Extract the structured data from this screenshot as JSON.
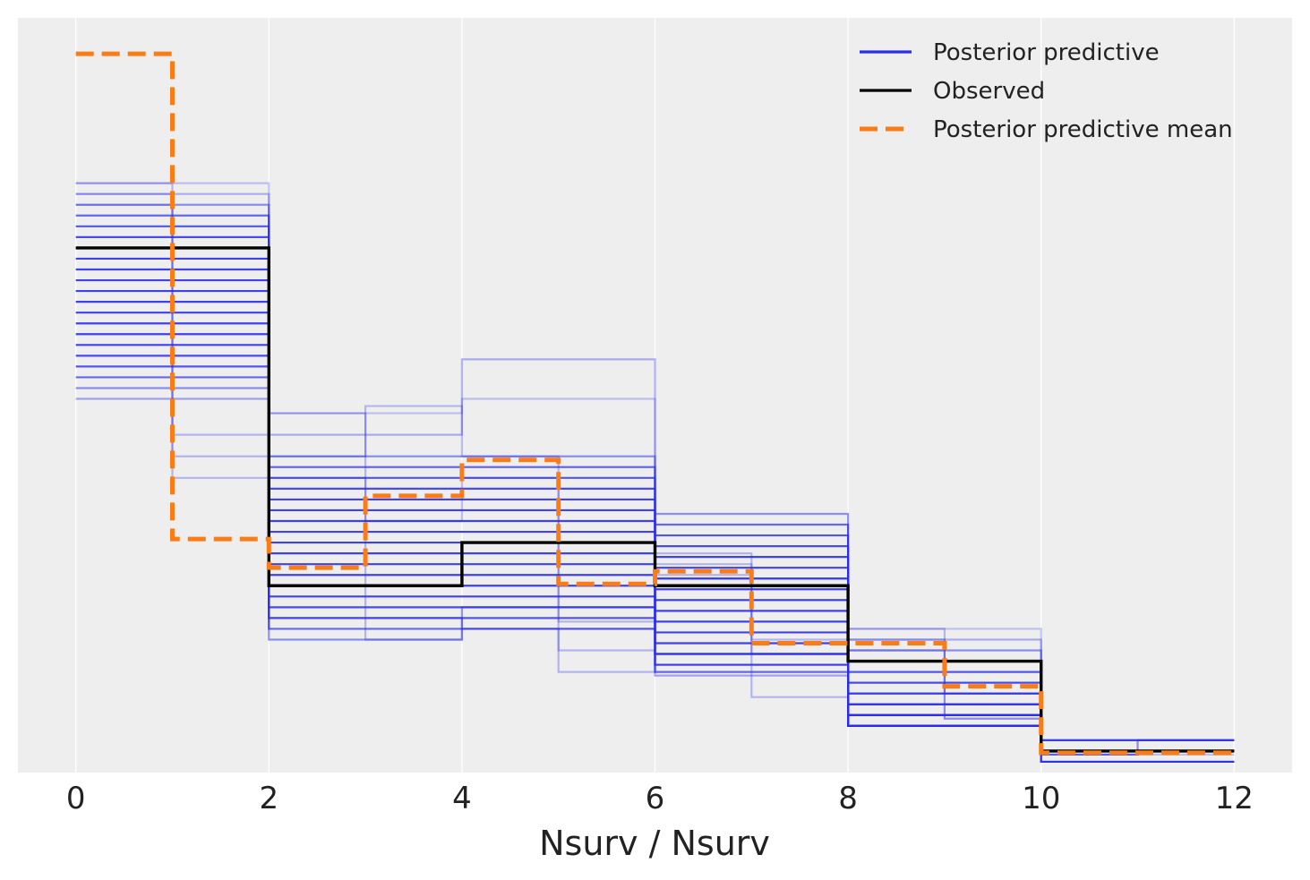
{
  "chart_data": {
    "type": "step",
    "xlabel": "Nsurv / Nsurv",
    "ylabel": "",
    "xlim": [
      -0.6,
      12.6
    ],
    "ylim": [
      0,
      0.42
    ],
    "x_ticks": [
      0,
      2,
      4,
      6,
      8,
      10,
      12
    ],
    "grid": true,
    "legend_position": "top-right",
    "legend": [
      {
        "label": "Posterior predictive",
        "color": "#2a2eec",
        "style": "solid"
      },
      {
        "label": "Observed",
        "color": "#000000",
        "style": "solid"
      },
      {
        "label": "Posterior predictive mean",
        "color": "#fa7c17",
        "style": "dashed"
      }
    ],
    "colors": {
      "background": "#eeeeee",
      "grid": "#ffffff",
      "posterior": "#2a2eec",
      "observed": "#000000",
      "mean": "#fa7c17"
    },
    "posterior_samples": [
      {
        "edges": [
          0,
          1,
          2,
          3,
          4,
          5,
          6,
          7,
          8,
          9,
          10,
          11,
          12
        ],
        "y": [
          0.328,
          0.328,
          0.2,
          0.2,
          0.208,
          0.208,
          0.096,
          0.096,
          0.08,
          0.08,
          0.01,
          0.01
        ],
        "alpha": 0.25
      },
      {
        "edges": [
          0,
          1,
          2,
          3,
          4,
          5,
          6,
          7,
          8,
          9,
          10,
          11,
          12
        ],
        "y": [
          0.322,
          0.322,
          0.188,
          0.188,
          0.23,
          0.23,
          0.108,
          0.108,
          0.074,
          0.074,
          0.012,
          0.012
        ],
        "alpha": 0.35
      },
      {
        "edges": [
          0,
          1,
          2,
          3,
          4,
          5,
          6,
          7,
          8,
          9,
          10,
          11,
          12
        ],
        "y": [
          0.316,
          0.316,
          0.176,
          0.176,
          0.176,
          0.176,
          0.144,
          0.144,
          0.068,
          0.068,
          0.018,
          0.018
        ],
        "alpha": 0.5
      },
      {
        "edges": [
          0,
          1,
          2,
          3,
          4,
          5,
          6,
          7,
          8,
          9,
          10,
          11,
          12
        ],
        "y": [
          0.31,
          0.31,
          0.17,
          0.17,
          0.17,
          0.17,
          0.138,
          0.138,
          0.062,
          0.062,
          0.006,
          0.006
        ],
        "alpha": 0.7
      },
      {
        "edges": [
          0,
          1,
          2,
          3,
          4,
          5,
          6,
          7,
          8,
          9,
          10,
          11,
          12
        ],
        "y": [
          0.304,
          0.304,
          0.164,
          0.164,
          0.164,
          0.164,
          0.132,
          0.132,
          0.056,
          0.056,
          0.012,
          0.012
        ],
        "alpha": 0.8
      },
      {
        "edges": [
          0,
          1,
          2,
          3,
          4,
          5,
          6,
          7,
          8,
          9,
          10,
          11,
          12
        ],
        "y": [
          0.298,
          0.298,
          0.158,
          0.158,
          0.158,
          0.158,
          0.126,
          0.126,
          0.05,
          0.05,
          0.012,
          0.012
        ],
        "alpha": 0.85
      },
      {
        "edges": [
          0,
          1,
          2,
          3,
          4,
          5,
          6,
          7,
          8,
          9,
          10,
          11,
          12
        ],
        "y": [
          0.292,
          0.292,
          0.152,
          0.152,
          0.152,
          0.152,
          0.12,
          0.12,
          0.044,
          0.044,
          0.012,
          0.012
        ],
        "alpha": 0.9
      },
      {
        "edges": [
          0,
          1,
          2,
          3,
          4,
          5,
          6,
          7,
          8,
          9,
          10,
          11,
          12
        ],
        "y": [
          0.286,
          0.286,
          0.146,
          0.146,
          0.146,
          0.146,
          0.114,
          0.114,
          0.038,
          0.038,
          0.012,
          0.012
        ],
        "alpha": 0.9
      },
      {
        "edges": [
          0,
          1,
          2,
          3,
          4,
          5,
          6,
          7,
          8,
          9,
          10,
          11,
          12
        ],
        "y": [
          0.28,
          0.28,
          0.14,
          0.14,
          0.14,
          0.14,
          0.108,
          0.108,
          0.032,
          0.032,
          0.012,
          0.012
        ],
        "alpha": 0.9
      },
      {
        "edges": [
          0,
          1,
          2,
          3,
          4,
          5,
          6,
          7,
          8,
          9,
          10,
          11,
          12
        ],
        "y": [
          0.274,
          0.274,
          0.134,
          0.134,
          0.134,
          0.134,
          0.102,
          0.102,
          0.026,
          0.026,
          0.012,
          0.012
        ],
        "alpha": 0.9
      },
      {
        "edges": [
          0,
          1,
          2,
          3,
          4,
          5,
          6,
          7,
          8,
          9,
          10,
          11,
          12
        ],
        "y": [
          0.268,
          0.268,
          0.128,
          0.128,
          0.128,
          0.128,
          0.096,
          0.096,
          0.026,
          0.026,
          0.012,
          0.012
        ],
        "alpha": 0.9
      },
      {
        "edges": [
          0,
          1,
          2,
          3,
          4,
          5,
          6,
          7,
          8,
          9,
          10,
          11,
          12
        ],
        "y": [
          0.262,
          0.262,
          0.122,
          0.122,
          0.122,
          0.122,
          0.09,
          0.09,
          0.026,
          0.026,
          0.012,
          0.012
        ],
        "alpha": 0.9
      },
      {
        "edges": [
          0,
          1,
          2,
          3,
          4,
          5,
          6,
          7,
          8,
          9,
          10,
          11,
          12
        ],
        "y": [
          0.256,
          0.256,
          0.116,
          0.116,
          0.116,
          0.116,
          0.084,
          0.084,
          0.026,
          0.026,
          0.012,
          0.012
        ],
        "alpha": 0.9
      },
      {
        "edges": [
          0,
          1,
          2,
          3,
          4,
          5,
          6,
          7,
          8,
          9,
          10,
          11,
          12
        ],
        "y": [
          0.25,
          0.25,
          0.11,
          0.11,
          0.11,
          0.11,
          0.078,
          0.078,
          0.026,
          0.026,
          0.012,
          0.012
        ],
        "alpha": 0.9
      },
      {
        "edges": [
          0,
          1,
          2,
          3,
          4,
          5,
          6,
          7,
          8,
          9,
          10,
          11,
          12
        ],
        "y": [
          0.244,
          0.244,
          0.104,
          0.104,
          0.104,
          0.104,
          0.072,
          0.072,
          0.026,
          0.026,
          0.012,
          0.012
        ],
        "alpha": 0.9
      },
      {
        "edges": [
          0,
          1,
          2,
          3,
          4,
          5,
          6,
          7,
          8,
          9,
          10,
          11,
          12
        ],
        "y": [
          0.238,
          0.238,
          0.098,
          0.098,
          0.098,
          0.098,
          0.066,
          0.066,
          0.026,
          0.026,
          0.012,
          0.012
        ],
        "alpha": 0.9
      },
      {
        "edges": [
          0,
          1,
          2,
          3,
          4,
          5,
          6,
          7,
          8,
          9,
          10,
          11,
          12
        ],
        "y": [
          0.232,
          0.232,
          0.092,
          0.092,
          0.092,
          0.092,
          0.06,
          0.06,
          0.032,
          0.032,
          0.012,
          0.012
        ],
        "alpha": 0.85
      },
      {
        "edges": [
          0,
          1,
          2,
          3,
          4,
          5,
          6,
          7,
          8,
          9,
          10,
          11,
          12
        ],
        "y": [
          0.226,
          0.226,
          0.086,
          0.086,
          0.086,
          0.086,
          0.066,
          0.066,
          0.038,
          0.038,
          0.006,
          0.006
        ],
        "alpha": 0.8
      },
      {
        "edges": [
          0,
          1,
          2,
          3,
          4,
          5,
          6,
          7,
          8,
          9,
          10,
          11,
          12
        ],
        "y": [
          0.22,
          0.22,
          0.08,
          0.08,
          0.08,
          0.08,
          0.056,
          0.056,
          0.032,
          0.032,
          0.018,
          0.018
        ],
        "alpha": 0.7
      },
      {
        "edges": [
          0,
          1,
          2,
          3,
          4,
          5,
          6,
          7,
          8,
          9,
          10,
          11,
          12
        ],
        "y": [
          0.214,
          0.214,
          0.074,
          0.074,
          0.092,
          0.092,
          0.06,
          0.06,
          0.044,
          0.044,
          0.006,
          0.006
        ],
        "alpha": 0.5
      },
      {
        "edges": [
          0,
          1,
          2,
          3,
          4,
          5,
          6,
          7,
          8,
          9,
          10,
          11,
          12
        ],
        "y": [
          0.208,
          0.208,
          0.086,
          0.086,
          0.08,
          0.08,
          0.054,
          0.054,
          0.032,
          0.032,
          0.018,
          0.018
        ],
        "alpha": 0.4
      },
      {
        "edges": [
          0,
          1,
          2,
          3,
          4,
          5,
          6,
          7,
          8,
          9,
          10,
          11,
          12
        ],
        "y": [
          0.328,
          0.164,
          0.2,
          0.074,
          0.08,
          0.056,
          0.122,
          0.042,
          0.08,
          0.03,
          0.01,
          0.018
        ],
        "alpha": 0.3
      },
      {
        "edges": [
          0,
          1,
          2,
          3,
          4,
          5,
          6,
          7,
          8,
          9,
          10,
          11,
          12
        ],
        "y": [
          0.316,
          0.176,
          0.176,
          0.204,
          0.176,
          0.068,
          0.116,
          0.066,
          0.074,
          0.044,
          0.01,
          0.012
        ],
        "alpha": 0.3
      },
      {
        "edges": [
          0,
          1,
          2,
          3,
          4,
          5,
          6,
          7,
          8,
          9,
          10,
          11,
          12
        ],
        "y": [
          0.322,
          0.188,
          0.164,
          0.14,
          0.164,
          0.084,
          0.11,
          0.074,
          0.068,
          0.03,
          0.01,
          0.018
        ],
        "alpha": 0.3
      }
    ],
    "observed": {
      "edges": [
        0,
        2,
        4,
        6,
        8,
        10,
        12
      ],
      "y": [
        0.292,
        0.104,
        0.128,
        0.104,
        0.062,
        0.012
      ]
    },
    "posterior_mean": {
      "edges": [
        0,
        1,
        2,
        3,
        4,
        5,
        6,
        7,
        8,
        9,
        10,
        11,
        12
      ],
      "y": [
        0.4,
        0.13,
        0.114,
        0.154,
        0.174,
        0.105,
        0.112,
        0.072,
        0.072,
        0.048,
        0.011,
        0.011
      ]
    }
  }
}
